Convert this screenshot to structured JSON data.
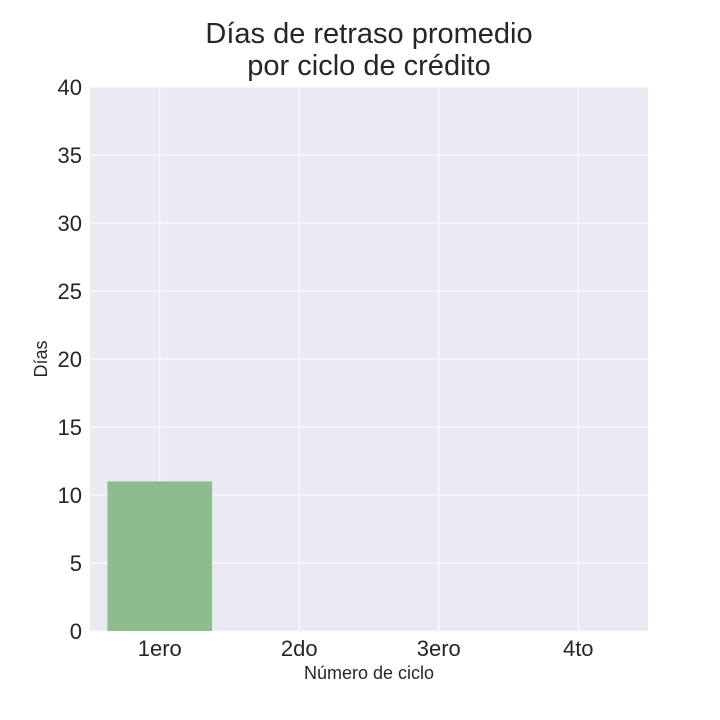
{
  "chart_data": {
    "type": "bar",
    "title": [
      "Días de retraso promedio",
      "por ciclo de crédito"
    ],
    "categories": [
      "1ero",
      "2do",
      "3ero",
      "4to"
    ],
    "values": [
      11,
      0,
      0,
      0
    ],
    "xlabel": "Número de ciclo",
    "ylabel": "Días",
    "ylim": [
      0,
      40
    ],
    "yticks": [
      0,
      5,
      10,
      15,
      20,
      25,
      30,
      35,
      40
    ],
    "grid": true,
    "legend": "none",
    "bar_color": "#8fbc8f",
    "background_color": "#eaeaf2",
    "grid_color": "#ffffff"
  }
}
